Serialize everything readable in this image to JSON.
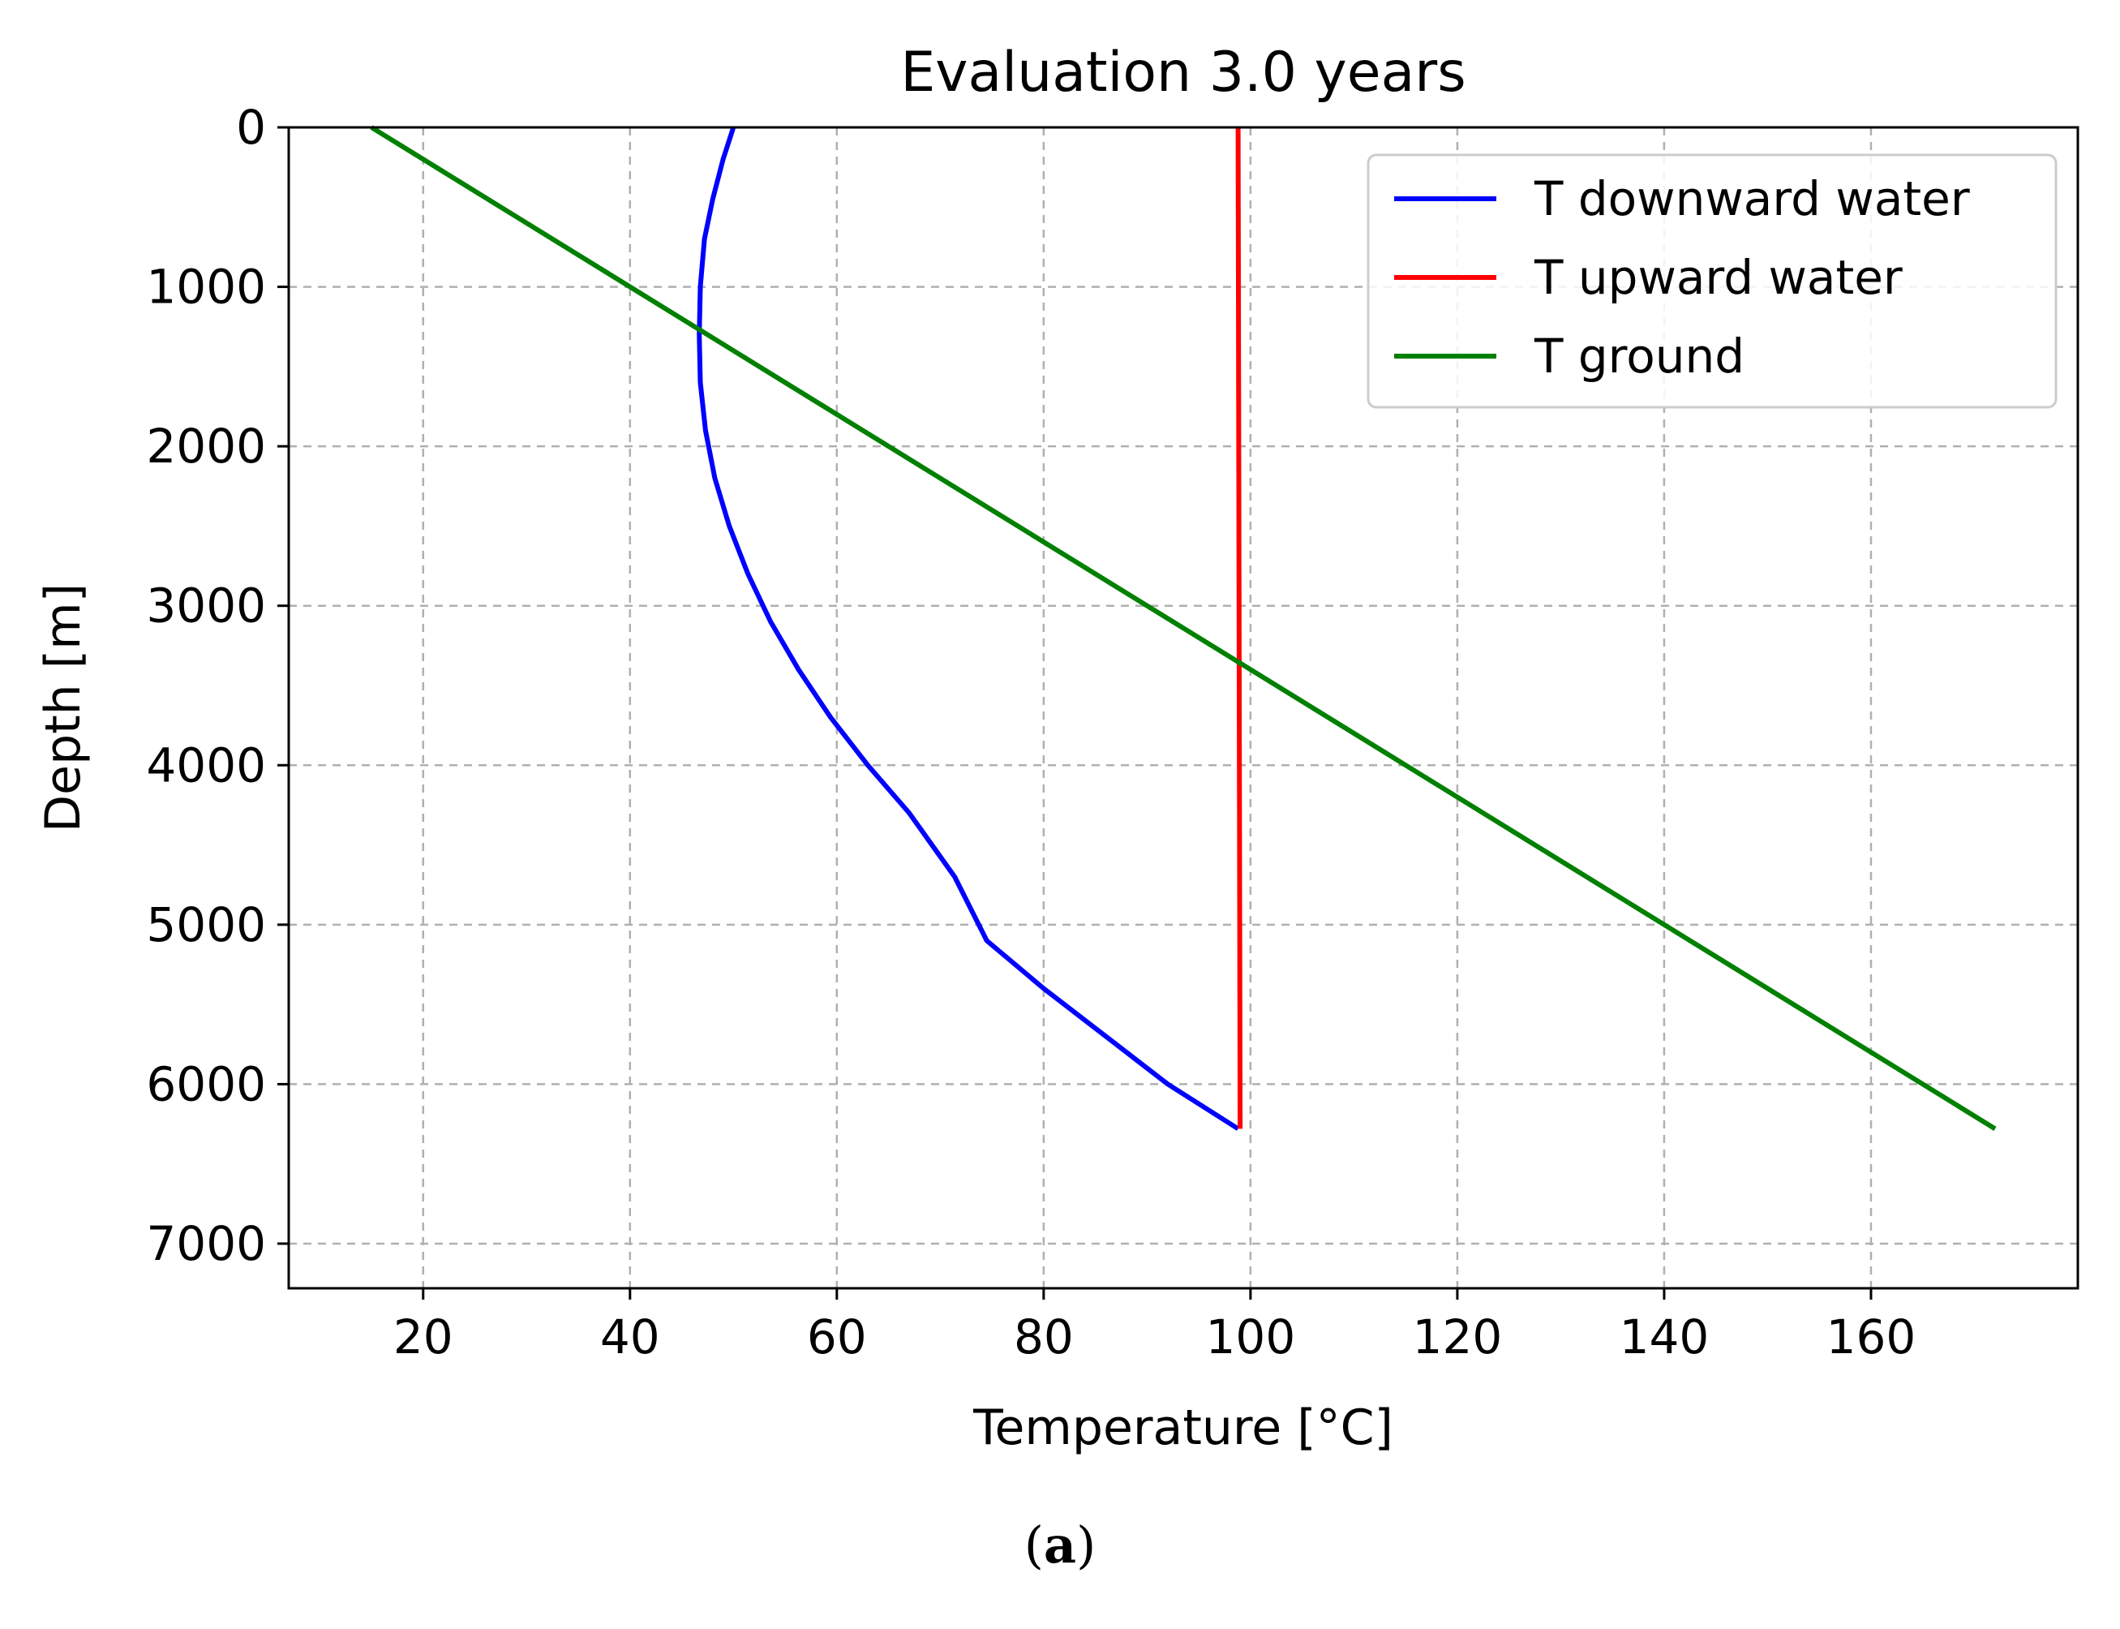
{
  "chart_data": {
    "type": "line",
    "title": "Evaluation 3.0 years",
    "xlabel": "Temperature [°C]",
    "ylabel": "Depth [m]",
    "xlim": [
      7,
      180
    ],
    "ylim": [
      7280,
      0
    ],
    "y_inverted": true,
    "grid": true,
    "grid_style": "dashed",
    "x_ticks": [
      20,
      40,
      60,
      80,
      100,
      120,
      140,
      160
    ],
    "y_ticks": [
      0,
      1000,
      2000,
      3000,
      4000,
      5000,
      6000,
      7000
    ],
    "legend_position": "upper right",
    "series": [
      {
        "name": "T downward water",
        "color": "#0000ff",
        "points": [
          [
            50.0,
            0
          ],
          [
            49.0,
            200
          ],
          [
            48.0,
            450
          ],
          [
            47.2,
            700
          ],
          [
            46.8,
            1000
          ],
          [
            46.7,
            1300
          ],
          [
            46.8,
            1600
          ],
          [
            47.3,
            1900
          ],
          [
            48.2,
            2200
          ],
          [
            49.6,
            2500
          ],
          [
            51.4,
            2800
          ],
          [
            53.6,
            3100
          ],
          [
            56.3,
            3400
          ],
          [
            59.4,
            3700
          ],
          [
            63.0,
            4000
          ],
          [
            67.0,
            4300
          ],
          [
            71.4,
            4700
          ],
          [
            74.5,
            5100
          ],
          [
            80.0,
            5400
          ],
          [
            86.0,
            5700
          ],
          [
            92.0,
            6000
          ],
          [
            98.8,
            6280
          ]
        ]
      },
      {
        "name": "T upward water",
        "color": "#ff0000",
        "points": [
          [
            98.8,
            0
          ],
          [
            99.0,
            6280
          ]
        ]
      },
      {
        "name": "T ground",
        "color": "#008000",
        "points": [
          [
            15.0,
            0
          ],
          [
            172.0,
            6280
          ]
        ]
      }
    ]
  },
  "caption": {
    "open": "(",
    "label": "a",
    "close": ")"
  }
}
